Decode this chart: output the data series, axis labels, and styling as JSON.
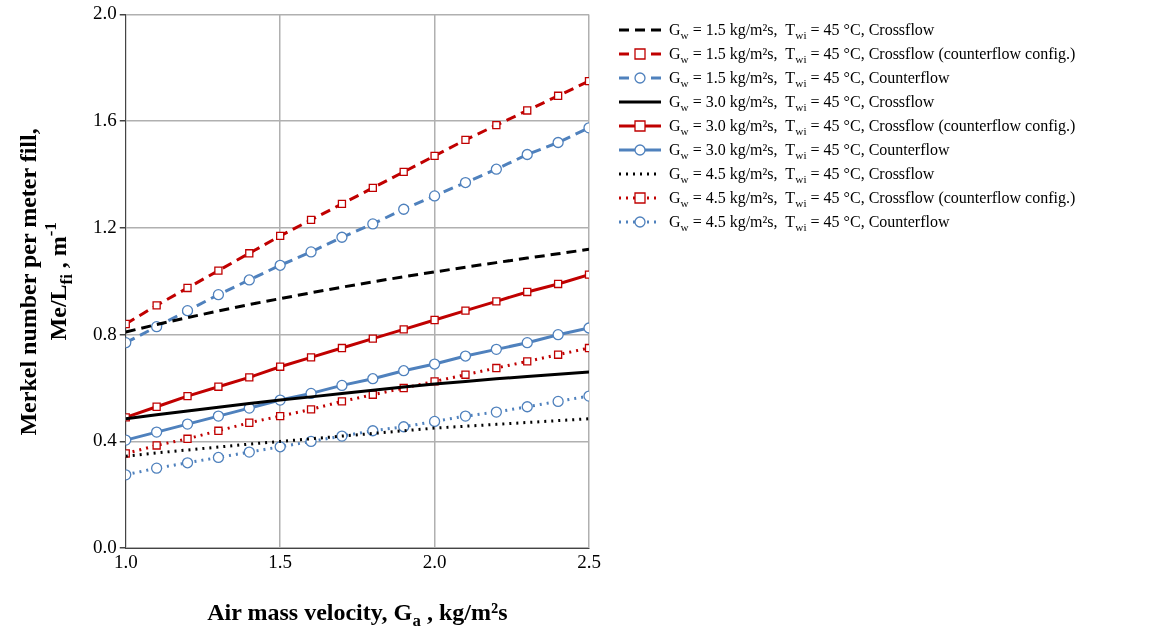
{
  "chart_data": {
    "type": "line",
    "xlabel": "Air mass velocity, G$_{a}$ , kg/m²s",
    "ylabel": "Merkel number per meter fill, Me/L$_{fi}$ , m$^{-1}$",
    "x": [
      1.0,
      1.1,
      1.2,
      1.3,
      1.4,
      1.5,
      1.6,
      1.7,
      1.8,
      1.9,
      2.0,
      2.1,
      2.2,
      2.3,
      2.4,
      2.5
    ],
    "xlim": [
      1.0,
      2.5
    ],
    "xticks": [
      {
        "value": 1.0,
        "label": "1.0"
      },
      {
        "value": 1.5,
        "label": "1.5"
      },
      {
        "value": 2.0,
        "label": "2.0"
      },
      {
        "value": 2.5,
        "label": "2.5"
      }
    ],
    "ylim": [
      0.0,
      2.0
    ],
    "yticks": [
      {
        "value": 0.0,
        "label": "0.0"
      },
      {
        "value": 0.4,
        "label": "0.4"
      },
      {
        "value": 0.8,
        "label": "0.8"
      },
      {
        "value": 1.2,
        "label": "1.2"
      },
      {
        "value": 1.6,
        "label": "1.6"
      },
      {
        "value": 2.0,
        "label": "2.0"
      }
    ],
    "grid": true,
    "legend": "right",
    "series": [
      {
        "name": "G$_{w}$ = 1.5 kg/m²s,  T$_{wi}$ = 45 °C, Crossflow",
        "color": "#000000",
        "line_style": "dashed",
        "marker": "none",
        "values": [
          0.81,
          0.838,
          0.864,
          0.889,
          0.913,
          0.935,
          0.957,
          0.978,
          0.998,
          1.017,
          1.035,
          1.053,
          1.07,
          1.087,
          1.103,
          1.12
        ]
      },
      {
        "name": "G$_{w}$ = 1.5 kg/m²s,  T$_{wi}$ = 45 °C, Crossflow (counterflow config.)",
        "color": "#c00000",
        "line_style": "dashed",
        "marker": "square",
        "values": [
          0.84,
          0.91,
          0.975,
          1.04,
          1.105,
          1.17,
          1.23,
          1.29,
          1.35,
          1.41,
          1.47,
          1.53,
          1.585,
          1.64,
          1.695,
          1.75
        ]
      },
      {
        "name": "G$_{w}$ = 1.5 kg/m²s,  T$_{wi}$ = 45 °C, Counterflow",
        "color": "#4f81bd",
        "line_style": "dashed",
        "marker": "circle",
        "values": [
          0.77,
          0.83,
          0.89,
          0.95,
          1.005,
          1.06,
          1.11,
          1.165,
          1.215,
          1.27,
          1.32,
          1.37,
          1.42,
          1.475,
          1.52,
          1.575
        ]
      },
      {
        "name": "G$_{w}$ = 3.0 kg/m²s,  T$_{wi}$ = 45 °C, Crossflow",
        "color": "#000000",
        "line_style": "solid",
        "marker": "none",
        "values": [
          0.485,
          0.5,
          0.514,
          0.528,
          0.542,
          0.555,
          0.567,
          0.58,
          0.592,
          0.604,
          0.615,
          0.625,
          0.635,
          0.643,
          0.652,
          0.66
        ]
      },
      {
        "name": "G$_{w}$ = 3.0 kg/m²s,  T$_{wi}$ = 45 °C, Crossflow (counterflow config.)",
        "color": "#c00000",
        "line_style": "solid",
        "marker": "square",
        "values": [
          0.49,
          0.53,
          0.57,
          0.605,
          0.64,
          0.68,
          0.715,
          0.75,
          0.785,
          0.82,
          0.855,
          0.89,
          0.925,
          0.96,
          0.99,
          1.025
        ]
      },
      {
        "name": "G$_{w}$ = 3.0 kg/m²s,  T$_{wi}$ = 45 °C, Counterflow",
        "color": "#4f81bd",
        "line_style": "solid",
        "marker": "circle",
        "values": [
          0.405,
          0.435,
          0.465,
          0.495,
          0.525,
          0.555,
          0.58,
          0.61,
          0.635,
          0.665,
          0.69,
          0.72,
          0.745,
          0.77,
          0.8,
          0.825
        ]
      },
      {
        "name": "G$_{w}$ = 4.5 kg/m²s,  T$_{wi}$ = 45 °C, Crossflow",
        "color": "#000000",
        "line_style": "dotted",
        "marker": "none",
        "values": [
          0.345,
          0.357,
          0.368,
          0.379,
          0.39,
          0.4,
          0.41,
          0.42,
          0.43,
          0.44,
          0.45,
          0.457,
          0.464,
          0.471,
          0.478,
          0.485
        ]
      },
      {
        "name": "G$_{w}$ = 4.5 kg/m²s,  T$_{wi}$ = 45 °C, Crossflow (counterflow config.)",
        "color": "#c00000",
        "line_style": "dotted",
        "marker": "square",
        "values": [
          0.355,
          0.385,
          0.41,
          0.44,
          0.47,
          0.495,
          0.52,
          0.55,
          0.575,
          0.6,
          0.625,
          0.65,
          0.675,
          0.7,
          0.725,
          0.75
        ]
      },
      {
        "name": "G$_{w}$ = 4.5 kg/m²s,  T$_{wi}$ = 45 °C, Counterflow",
        "color": "#4f81bd",
        "line_style": "dotted",
        "marker": "circle",
        "values": [
          0.275,
          0.3,
          0.32,
          0.34,
          0.36,
          0.38,
          0.4,
          0.42,
          0.44,
          0.455,
          0.475,
          0.495,
          0.51,
          0.53,
          0.55,
          0.57
        ]
      }
    ]
  }
}
